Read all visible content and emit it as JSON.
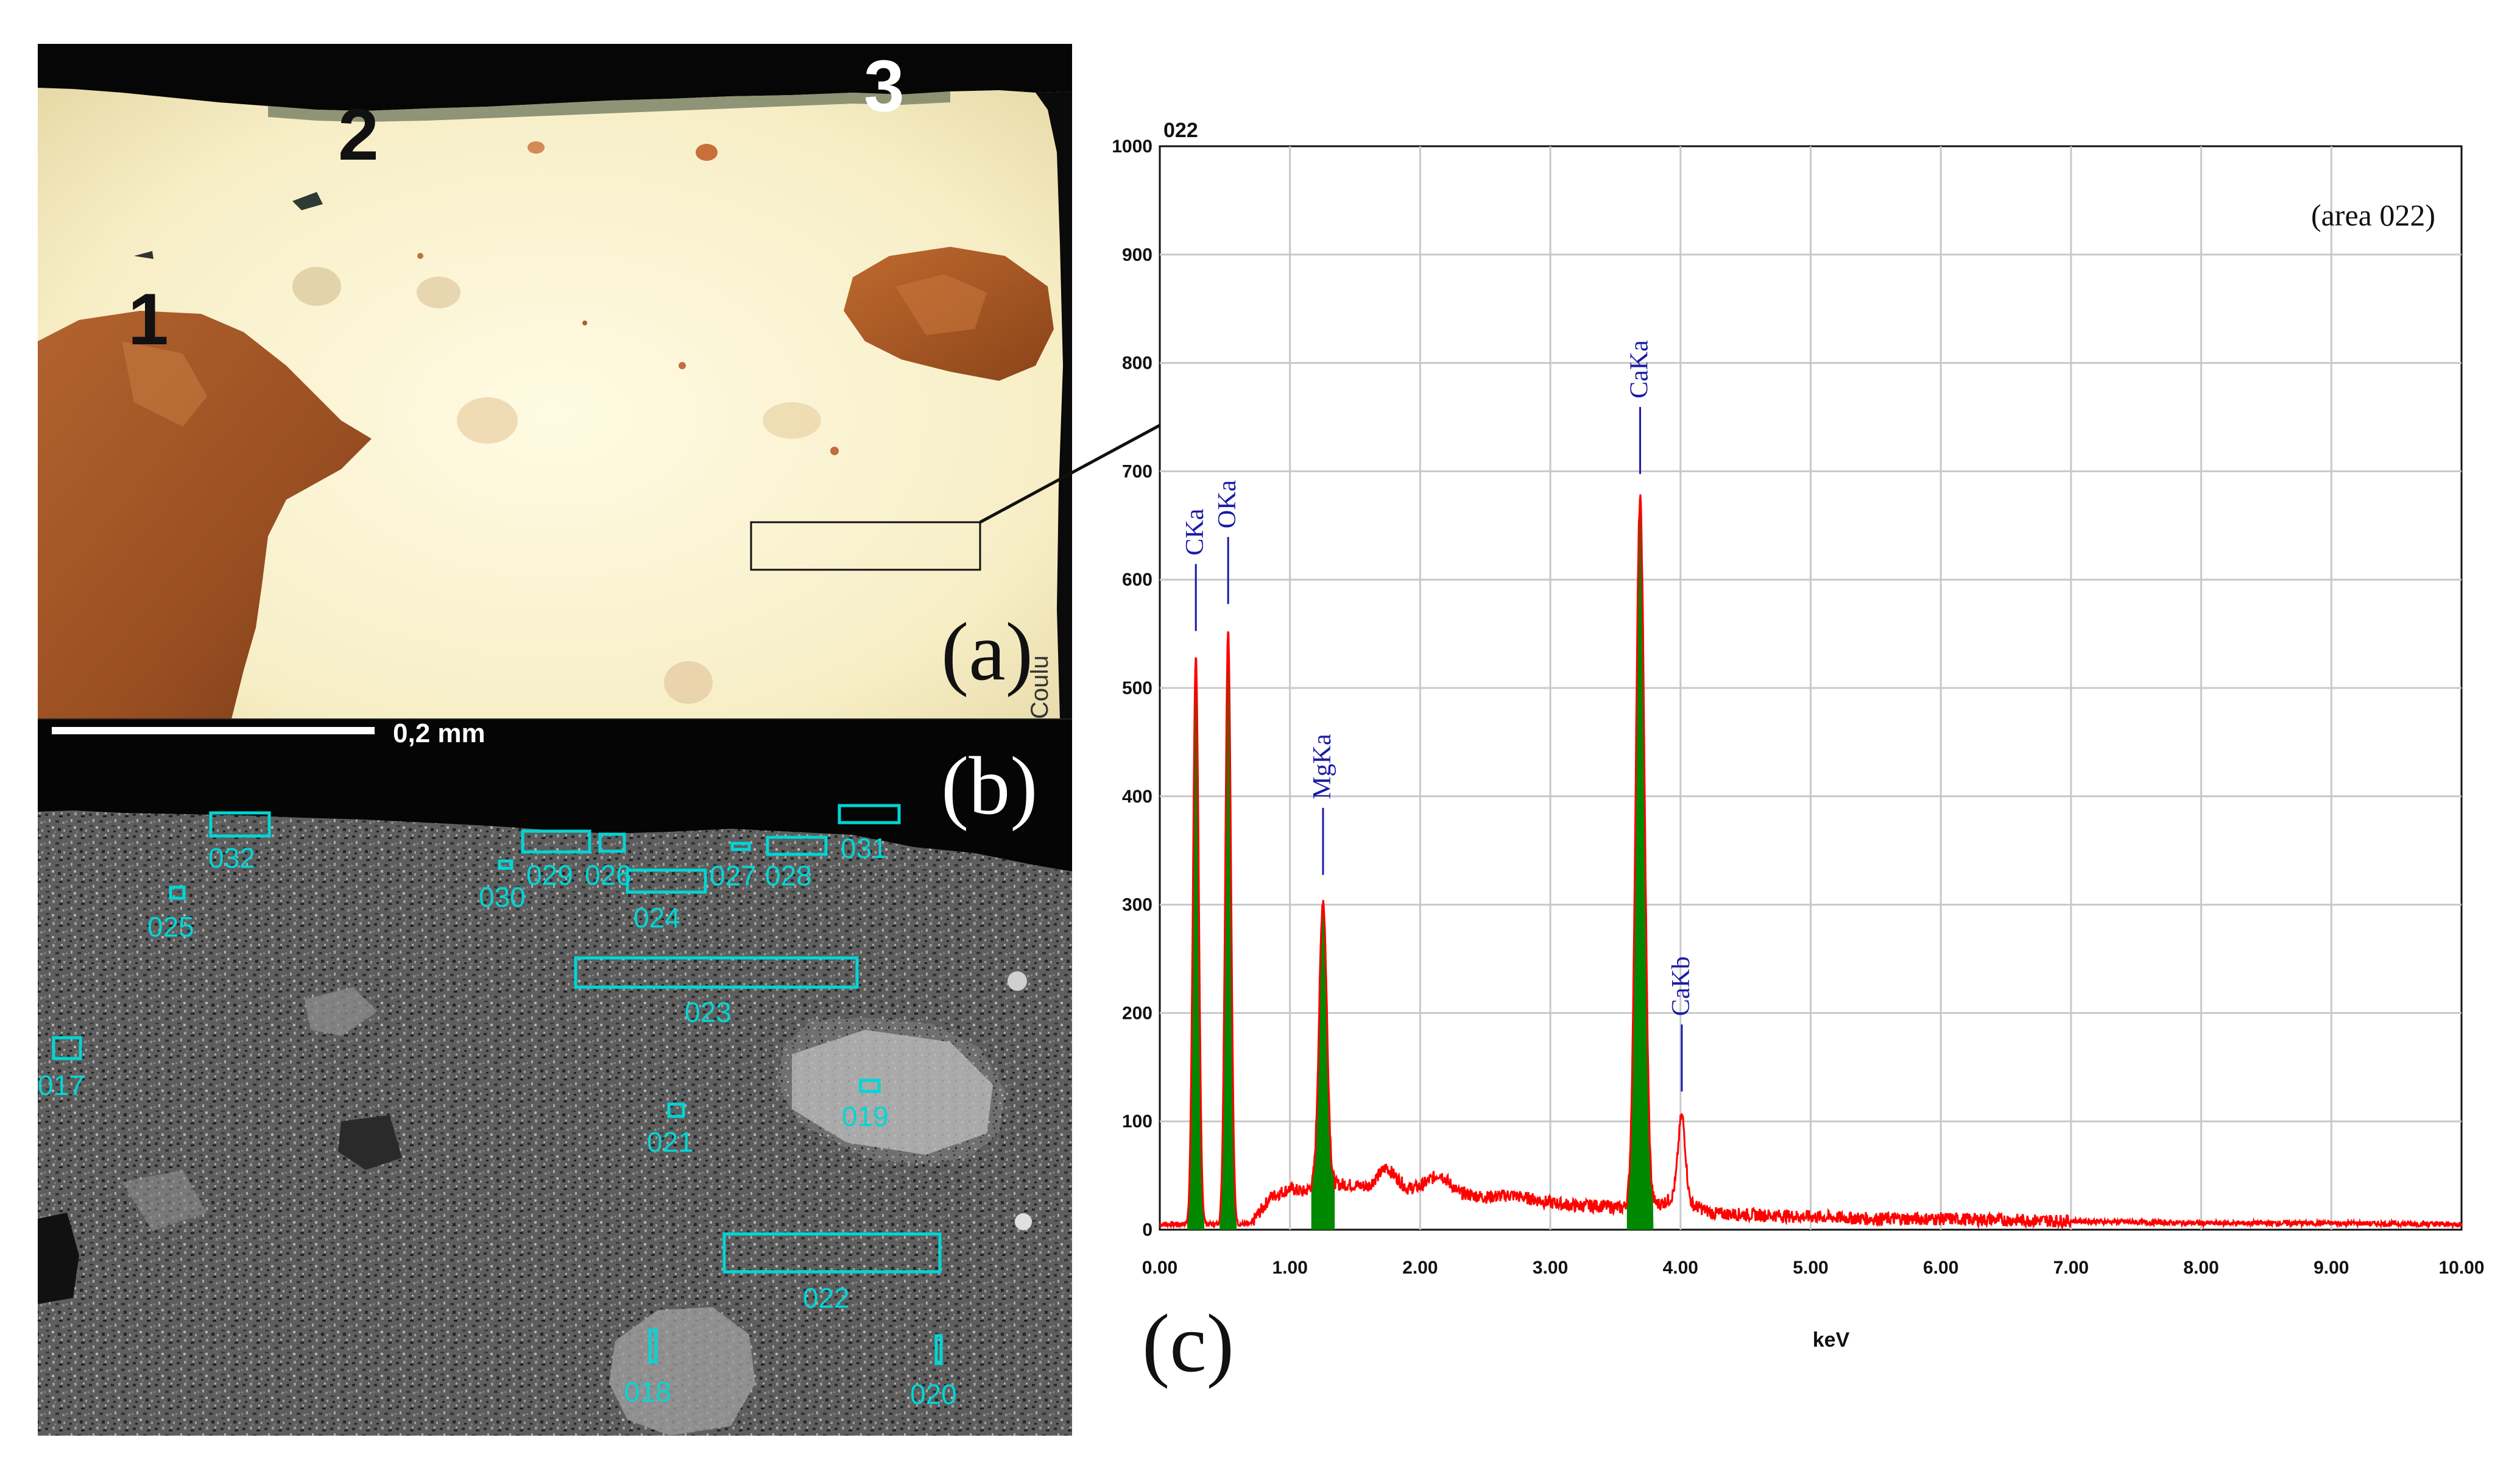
{
  "panel_a": {
    "label": "(a)",
    "layer_labels": [
      "1",
      "2",
      "3"
    ],
    "stamp_text": "Coulu"
  },
  "panel_b": {
    "label": "(b)",
    "scale_bar_label": "0,2 mm",
    "areas": [
      {
        "id": "032"
      },
      {
        "id": "025"
      },
      {
        "id": "030"
      },
      {
        "id": "029"
      },
      {
        "id": "026"
      },
      {
        "id": "024"
      },
      {
        "id": "027"
      },
      {
        "id": "028"
      },
      {
        "id": "031"
      },
      {
        "id": "023"
      },
      {
        "id": "017"
      },
      {
        "id": "019"
      },
      {
        "id": "021"
      },
      {
        "id": "022"
      },
      {
        "id": "018"
      },
      {
        "id": "020"
      }
    ]
  },
  "panel_c": {
    "label": "(c)",
    "spectrum_id": "022",
    "annotation": "(area 022)"
  },
  "chart_data": {
    "type": "line",
    "title": "022",
    "xlabel": "keV",
    "ylabel": "",
    "xlim": [
      0,
      10
    ],
    "ylim": [
      0,
      1000
    ],
    "grid": true,
    "x_ticks": [
      "0.00",
      "1.00",
      "2.00",
      "3.00",
      "4.00",
      "5.00",
      "6.00",
      "7.00",
      "8.00",
      "9.00",
      "10.00"
    ],
    "y_ticks": [
      "0",
      "100",
      "200",
      "300",
      "400",
      "500",
      "600",
      "700",
      "800",
      "900",
      "1000"
    ],
    "peaks": [
      {
        "label": "CKa",
        "x": 0.277,
        "y": 530
      },
      {
        "label": "OKa",
        "x": 0.525,
        "y": 555
      },
      {
        "label": "MgKa",
        "x": 1.254,
        "y": 305
      },
      {
        "label": "CaKa",
        "x": 3.69,
        "y": 675
      },
      {
        "label": "CaKb",
        "x": 4.01,
        "y": 105
      }
    ],
    "background": [
      [
        0.0,
        5
      ],
      [
        0.7,
        5
      ],
      [
        0.85,
        30
      ],
      [
        1.0,
        38
      ],
      [
        1.1,
        35
      ],
      [
        1.2,
        40
      ],
      [
        1.4,
        42
      ],
      [
        1.6,
        40
      ],
      [
        1.74,
        58
      ],
      [
        1.9,
        38
      ],
      [
        2.0,
        40
      ],
      [
        2.15,
        52
      ],
      [
        2.3,
        34
      ],
      [
        2.5,
        30
      ],
      [
        2.7,
        32
      ],
      [
        3.0,
        25
      ],
      [
        3.2,
        22
      ],
      [
        3.4,
        22
      ],
      [
        3.55,
        20
      ],
      [
        3.85,
        24
      ],
      [
        3.95,
        30
      ],
      [
        4.25,
        15
      ],
      [
        4.5,
        14
      ],
      [
        5.0,
        12
      ],
      [
        5.5,
        10
      ],
      [
        6.0,
        10
      ],
      [
        7.0,
        8
      ],
      [
        8.0,
        6
      ],
      [
        9.0,
        6
      ],
      [
        10.0,
        5
      ]
    ],
    "colors": {
      "spectrum": "#ff0000",
      "peak_fill": "#008800",
      "peak_label": "#1a1aa8",
      "grid": "#c8c8c8"
    }
  }
}
